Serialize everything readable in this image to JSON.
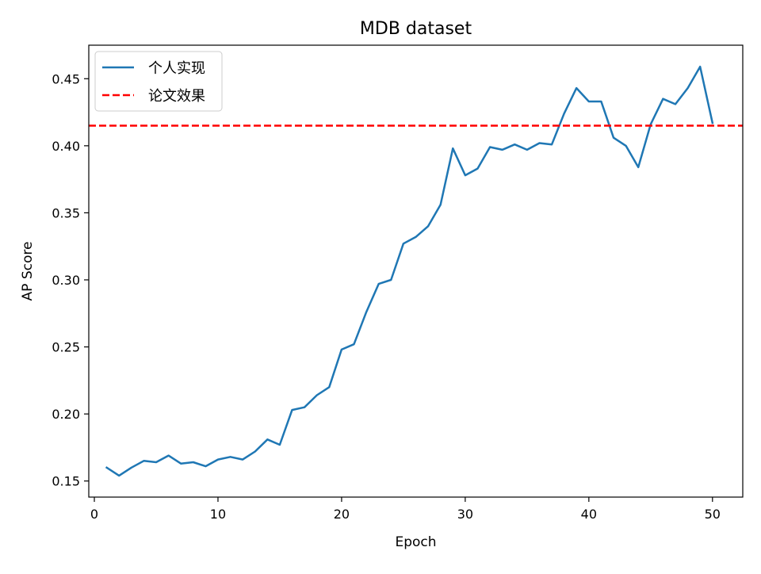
{
  "chart_data": {
    "type": "line",
    "title": "MDB dataset",
    "xlabel": "Epoch",
    "ylabel": "AP Score",
    "xlim": [
      -0.45,
      52.45
    ],
    "ylim": [
      0.138,
      0.475
    ],
    "x_ticks": [
      0,
      10,
      20,
      30,
      40,
      50
    ],
    "y_ticks": [
      0.15,
      0.2,
      0.25,
      0.3,
      0.35,
      0.4,
      0.45
    ],
    "x_tick_labels": [
      "0",
      "10",
      "20",
      "30",
      "40",
      "50"
    ],
    "y_tick_labels": [
      "0.15",
      "0.20",
      "0.25",
      "0.30",
      "0.35",
      "0.40",
      "0.45"
    ],
    "grid": false,
    "legend_position": "upper-left",
    "series": [
      {
        "name": "个人实现",
        "style": "solid",
        "color": "#1f77b4",
        "x": [
          1,
          2,
          3,
          4,
          5,
          6,
          7,
          8,
          9,
          10,
          11,
          12,
          13,
          14,
          15,
          16,
          17,
          18,
          19,
          20,
          21,
          22,
          23,
          24,
          25,
          26,
          27,
          28,
          29,
          30,
          31,
          32,
          33,
          34,
          35,
          36,
          37,
          38,
          39,
          40,
          41,
          42,
          43,
          44,
          45,
          46,
          47,
          48,
          49,
          50
        ],
        "values": [
          0.16,
          0.154,
          0.16,
          0.165,
          0.164,
          0.169,
          0.163,
          0.164,
          0.161,
          0.166,
          0.168,
          0.166,
          0.172,
          0.181,
          0.177,
          0.203,
          0.205,
          0.214,
          0.22,
          0.248,
          0.252,
          0.276,
          0.297,
          0.3,
          0.327,
          0.332,
          0.34,
          0.356,
          0.398,
          0.378,
          0.383,
          0.399,
          0.397,
          0.401,
          0.397,
          0.402,
          0.401,
          0.424,
          0.443,
          0.433,
          0.433,
          0.406,
          0.4,
          0.384,
          0.416,
          0.435,
          0.431,
          0.443,
          0.459,
          0.417
        ]
      },
      {
        "name": "论文效果",
        "style": "dashed",
        "color": "#ff0000",
        "y": 0.415
      }
    ]
  }
}
